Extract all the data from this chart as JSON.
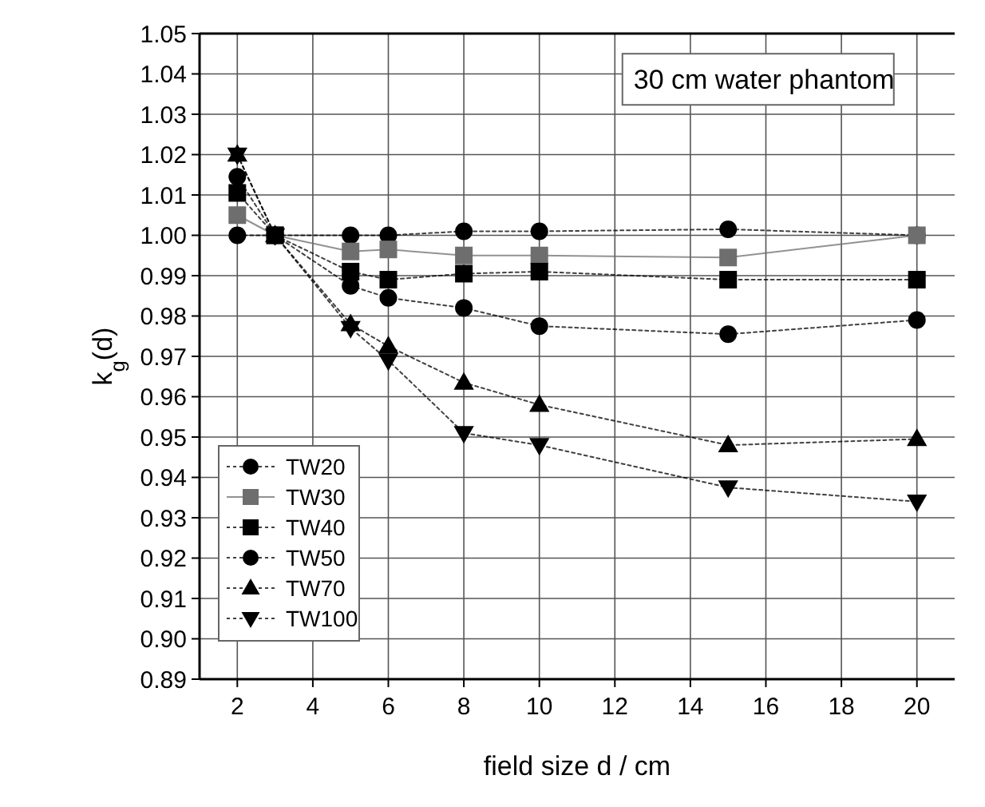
{
  "chart_data": {
    "type": "line",
    "xlabel": "field size d / cm",
    "ylabel": "k$_{g}$(d)",
    "annotations": [
      "30 cm water phantom"
    ],
    "x": [
      2,
      3,
      5,
      6,
      8,
      10,
      15,
      20
    ],
    "xlim": [
      1,
      21
    ],
    "xticks": [
      2,
      4,
      6,
      8,
      10,
      12,
      14,
      16,
      18,
      20
    ],
    "ylim": [
      0.89,
      1.05
    ],
    "yticks": [
      {
        "value": 0.89,
        "label": "0.89"
      },
      {
        "value": 0.9,
        "label": "0.90"
      },
      {
        "value": 0.91,
        "label": "0.91"
      },
      {
        "value": 0.92,
        "label": "0.92"
      },
      {
        "value": 0.93,
        "label": "0.93"
      },
      {
        "value": 0.94,
        "label": "0.94"
      },
      {
        "value": 0.95,
        "label": "0.95"
      },
      {
        "value": 0.96,
        "label": "0.96"
      },
      {
        "value": 0.97,
        "label": "0.97"
      },
      {
        "value": 0.98,
        "label": "0.98"
      },
      {
        "value": 0.99,
        "label": "0.99"
      },
      {
        "value": 1,
        "label": "1.00"
      },
      {
        "value": 1.01,
        "label": "1.01"
      },
      {
        "value": 1.02,
        "label": "1.02"
      },
      {
        "value": 1.03,
        "label": "1.03"
      },
      {
        "value": 1.04,
        "label": "1.04"
      },
      {
        "value": 1.05,
        "label": "1.05"
      }
    ],
    "grid": true,
    "legend": "bottom left",
    "series": [
      {
        "name": "TW20",
        "color": "#000000",
        "marker": "circle",
        "line_style": "dotted",
        "values": [
          1.0,
          1.0,
          1.0,
          1.0,
          1.001,
          1.001,
          1.0015,
          1.0
        ]
      },
      {
        "name": "TW30",
        "color": "#6e6e6e",
        "marker": "square",
        "line_style": "solid",
        "values": [
          1.005,
          1.0,
          0.996,
          0.9965,
          0.995,
          0.995,
          0.9945,
          1.0
        ]
      },
      {
        "name": "TW40",
        "color": "#000000",
        "marker": "square",
        "line_style": "dotted",
        "values": [
          1.0105,
          1.0,
          0.991,
          0.989,
          0.9905,
          0.991,
          0.989,
          0.989
        ]
      },
      {
        "name": "TW50",
        "color": "#000000",
        "marker": "circle",
        "line_style": "dotted",
        "values": [
          1.0145,
          1.0,
          0.9875,
          0.9845,
          0.982,
          0.9775,
          0.9755,
          0.979
        ]
      },
      {
        "name": "TW70",
        "color": "#000000",
        "marker": "triangle",
        "line_style": "dotted",
        "values": [
          1.02,
          1.0,
          0.978,
          0.9725,
          0.9635,
          0.958,
          0.948,
          0.9495
        ]
      },
      {
        "name": "TW100",
        "color": "#000000",
        "marker": "triangle-down",
        "line_style": "dotted",
        "values": [
          1.02,
          1.0,
          0.977,
          0.969,
          0.951,
          0.948,
          0.9375,
          0.934
        ]
      }
    ]
  }
}
